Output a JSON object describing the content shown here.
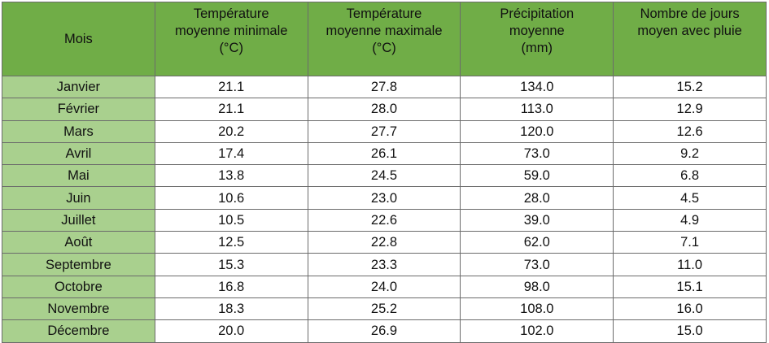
{
  "table": {
    "header": [
      [
        "Mois"
      ],
      [
        "Température",
        "moyenne minimale",
        "(°C)"
      ],
      [
        "Température",
        "moyenne maximale",
        "(°C)"
      ],
      [
        "Précipitation",
        "moyenne",
        "(mm)"
      ],
      [
        "Nombre de jours",
        "moyen avec pluie"
      ]
    ],
    "rows": [
      [
        "Janvier",
        "21.1",
        "27.8",
        "134.0",
        "15.2"
      ],
      [
        "Février",
        "21.1",
        "28.0",
        "113.0",
        "12.9"
      ],
      [
        "Mars",
        "20.2",
        "27.7",
        "120.0",
        "12.6"
      ],
      [
        "Avril",
        "17.4",
        "26.1",
        "73.0",
        "9.2"
      ],
      [
        "Mai",
        "13.8",
        "24.5",
        "59.0",
        "6.8"
      ],
      [
        "Juin",
        "10.6",
        "23.0",
        "28.0",
        "4.5"
      ],
      [
        "Juillet",
        "10.5",
        "22.6",
        "39.0",
        "4.9"
      ],
      [
        "Août",
        "12.5",
        "22.8",
        "62.0",
        "7.1"
      ],
      [
        "Septembre",
        "15.3",
        "23.3",
        "73.0",
        "11.0"
      ],
      [
        "Octobre",
        "16.8",
        "24.0",
        "98.0",
        "15.1"
      ],
      [
        "Novembre",
        "18.3",
        "25.2",
        "108.0",
        "16.0"
      ],
      [
        "Décembre",
        "20.0",
        "26.9",
        "102.0",
        "15.0"
      ]
    ]
  }
}
